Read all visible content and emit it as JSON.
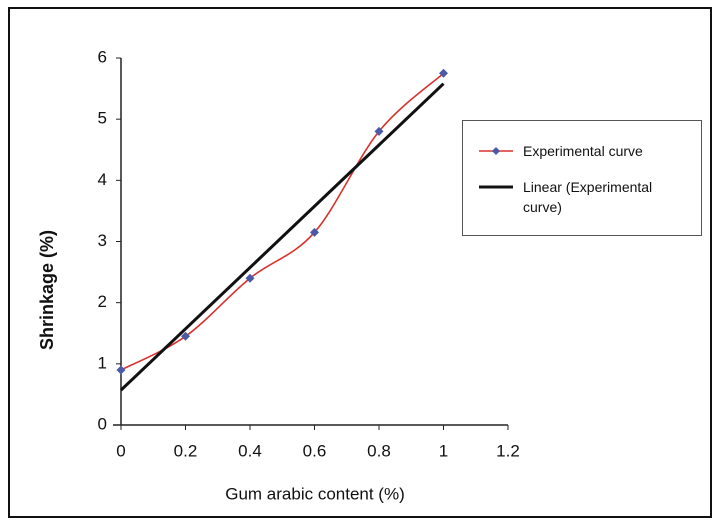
{
  "chart_data": {
    "type": "line",
    "x_label": "Gum arabic content (%)",
    "y_label": "Shrinkage   (%)",
    "xlim": [
      0,
      1.2
    ],
    "xticks": [
      0,
      0.2,
      0.4,
      0.6,
      0.8,
      1,
      1.2
    ],
    "ylim": [
      0,
      6
    ],
    "yticks": [
      0,
      1,
      2,
      3,
      4,
      5,
      6
    ],
    "grid": false,
    "legend": "right",
    "series": [
      {
        "name": "Experimental curve",
        "color": "#d8322e",
        "marker_color": "#4a5aa8",
        "smooth": true,
        "markers": true,
        "x": [
          0,
          0.2,
          0.4,
          0.6,
          0.8,
          1.0
        ],
        "values": [
          0.9,
          1.45,
          2.4,
          3.15,
          4.8,
          5.75
        ]
      },
      {
        "name": "Linear (Experimental curve)",
        "color": "#111111",
        "smooth": false,
        "markers": false,
        "x": [
          0,
          1.0
        ],
        "values": [
          0.57,
          5.58
        ]
      }
    ]
  }
}
